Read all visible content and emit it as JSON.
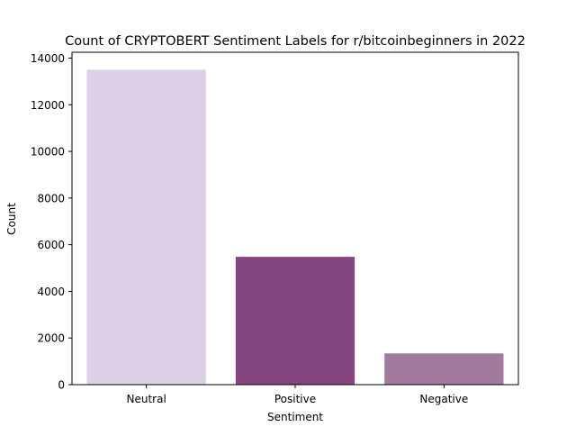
{
  "chart_data": {
    "type": "bar",
    "title": "Count of CRYPTOBERT Sentiment Labels for r/bitcoinbeginners in 2022",
    "xlabel": "Sentiment",
    "ylabel": "Count",
    "categories": [
      "Neutral",
      "Positive",
      "Negative"
    ],
    "values": [
      13500,
      5480,
      1340
    ],
    "colors": [
      "#dbd0e6",
      "#85457f",
      "#a17a9d"
    ],
    "ylim": [
      0,
      14250
    ],
    "yticks": [
      0,
      2000,
      4000,
      6000,
      8000,
      10000,
      12000,
      14000
    ],
    "grid": false,
    "legend": "none"
  }
}
